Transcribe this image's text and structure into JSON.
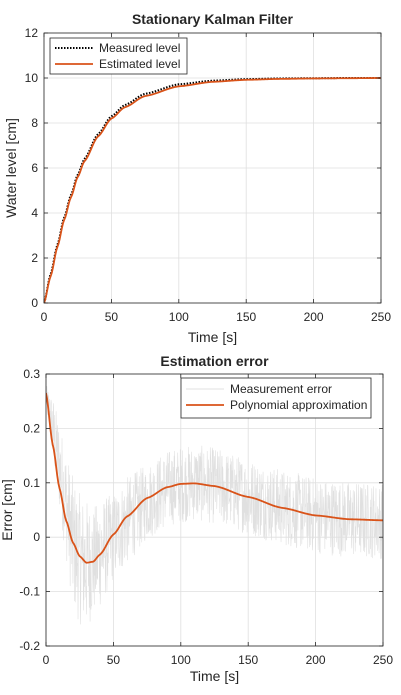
{
  "chart_data": [
    {
      "type": "line",
      "title": "Stationary Kalman Filter",
      "xlabel": "Time [s]",
      "ylabel": "Water level [cm]",
      "xlim": [
        0,
        250
      ],
      "ylim": [
        0,
        12
      ],
      "xticks": [
        "0",
        "50",
        "100",
        "150",
        "200",
        "250"
      ],
      "yticks": [
        "0",
        "2",
        "4",
        "6",
        "8",
        "10",
        "12"
      ],
      "grid": true,
      "legend_position": "top-left",
      "series": [
        {
          "name": "Measured level",
          "style": "dotted",
          "color": "#000000",
          "x": [
            0,
            5,
            10,
            15,
            20,
            25,
            30,
            40,
            50,
            60,
            75,
            100,
            125,
            150,
            175,
            200,
            225,
            250
          ],
          "y": [
            0,
            1.3,
            2.6,
            3.8,
            4.8,
            5.7,
            6.4,
            7.5,
            8.3,
            8.8,
            9.3,
            9.72,
            9.88,
            9.95,
            9.98,
            9.99,
            10.0,
            10.0
          ]
        },
        {
          "name": "Estimated level",
          "style": "solid",
          "color": "#D95319",
          "x": [
            0,
            5,
            10,
            15,
            20,
            25,
            30,
            40,
            50,
            60,
            75,
            100,
            125,
            150,
            175,
            200,
            225,
            250
          ],
          "y": [
            0,
            1.2,
            2.5,
            3.7,
            4.7,
            5.6,
            6.3,
            7.4,
            8.2,
            8.7,
            9.2,
            9.63,
            9.83,
            9.92,
            9.96,
            9.98,
            9.99,
            10.0
          ]
        }
      ]
    },
    {
      "type": "line",
      "title": "Estimation error",
      "xlabel": "Time [s]",
      "ylabel": "Error [cm]",
      "xlim": [
        0,
        250
      ],
      "ylim": [
        -0.2,
        0.3
      ],
      "xticks": [
        "0",
        "50",
        "100",
        "150",
        "200",
        "250"
      ],
      "yticks": [
        "-0.2",
        "-0.1",
        "0",
        "0.1",
        "0.2",
        "0.3"
      ],
      "grid": true,
      "legend_position": "top-right",
      "series": [
        {
          "name": "Measurement error",
          "style": "noisy",
          "color": "#E0E0E0",
          "x": [
            0,
            5,
            10,
            15,
            20,
            25,
            30,
            35,
            40,
            50,
            60,
            75,
            90,
            100,
            110,
            125,
            150,
            175,
            200,
            225,
            250
          ],
          "y": [
            0.26,
            0.2,
            0.13,
            0.06,
            -0.01,
            -0.04,
            -0.05,
            -0.045,
            -0.03,
            0.0,
            0.03,
            0.065,
            0.09,
            0.097,
            0.1,
            0.095,
            0.075,
            0.055,
            0.04,
            0.033,
            0.03
          ],
          "noise_amplitude": [
            0.02,
            0.06,
            0.08,
            0.1,
            0.12,
            0.12,
            0.12,
            0.1,
            0.1,
            0.08,
            0.08,
            0.07,
            0.07,
            0.07,
            0.07,
            0.07,
            0.07,
            0.07,
            0.07,
            0.07,
            0.07
          ]
        },
        {
          "name": "Polynomial approximation",
          "style": "solid",
          "color": "#D95319",
          "x": [
            0,
            5,
            10,
            15,
            20,
            25,
            30,
            35,
            40,
            50,
            60,
            75,
            90,
            100,
            110,
            125,
            150,
            175,
            200,
            225,
            250
          ],
          "y": [
            0.265,
            0.17,
            0.09,
            0.03,
            -0.01,
            -0.035,
            -0.047,
            -0.045,
            -0.032,
            0.005,
            0.038,
            0.072,
            0.092,
            0.098,
            0.099,
            0.094,
            0.074,
            0.054,
            0.04,
            0.033,
            0.031
          ]
        }
      ]
    }
  ]
}
